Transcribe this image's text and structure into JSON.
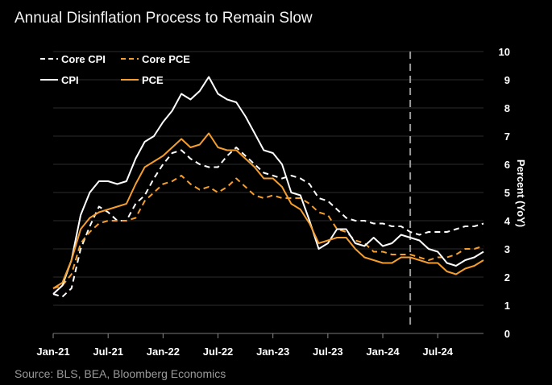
{
  "title": "Annual Disinflation Process to Remain Slow",
  "source": "Source: BLS, BEA, Bloomberg Economics",
  "chart_data": {
    "type": "line",
    "ylabel": "Percent (YoY)",
    "ylim": [
      0,
      10
    ],
    "yticks": [
      0,
      1,
      2,
      3,
      4,
      5,
      6,
      7,
      8,
      9,
      10
    ],
    "y_axis_side": "right",
    "grid": "horizontal",
    "legend_position": "top-left",
    "x_start": "2021-01",
    "x_end": "2024-12",
    "x_tick_labels": [
      "Jan-21",
      "Jul-21",
      "Jan-22",
      "Jul-22",
      "Jan-23",
      "Jul-23",
      "Jan-24",
      "Jul-24"
    ],
    "forecast_divider": "2024-04",
    "series": [
      {
        "name": "Core CPI",
        "color": "#ffffff",
        "dash": true,
        "x": [
          "2021-01",
          "2021-02",
          "2021-03",
          "2021-04",
          "2021-05",
          "2021-06",
          "2021-07",
          "2021-08",
          "2021-09",
          "2021-10",
          "2021-11",
          "2021-12",
          "2022-01",
          "2022-02",
          "2022-03",
          "2022-04",
          "2022-05",
          "2022-06",
          "2022-07",
          "2022-08",
          "2022-09",
          "2022-10",
          "2022-11",
          "2022-12",
          "2023-01",
          "2023-02",
          "2023-03",
          "2023-04",
          "2023-05",
          "2023-06",
          "2023-07",
          "2023-08",
          "2023-09",
          "2023-10",
          "2023-11",
          "2023-12",
          "2024-01",
          "2024-02",
          "2024-03",
          "2024-04",
          "2024-05",
          "2024-06",
          "2024-07",
          "2024-08",
          "2024-09",
          "2024-10",
          "2024-11",
          "2024-12"
        ],
        "values": [
          1.4,
          1.3,
          1.6,
          3.0,
          3.8,
          4.5,
          4.3,
          4.0,
          4.0,
          4.6,
          4.9,
          5.5,
          6.0,
          6.4,
          6.5,
          6.2,
          6.0,
          5.9,
          5.9,
          6.3,
          6.6,
          6.3,
          6.0,
          5.7,
          5.6,
          5.5,
          5.6,
          5.5,
          5.3,
          4.8,
          4.7,
          4.4,
          4.1,
          4.0,
          4.0,
          3.9,
          3.9,
          3.8,
          3.8,
          3.6,
          3.5,
          3.6,
          3.6,
          3.6,
          3.7,
          3.8,
          3.8,
          3.9
        ]
      },
      {
        "name": "Core PCE",
        "color": "#f59e2e",
        "dash": true,
        "x": [
          "2021-01",
          "2021-02",
          "2021-03",
          "2021-04",
          "2021-05",
          "2021-06",
          "2021-07",
          "2021-08",
          "2021-09",
          "2021-10",
          "2021-11",
          "2021-12",
          "2022-01",
          "2022-02",
          "2022-03",
          "2022-04",
          "2022-05",
          "2022-06",
          "2022-07",
          "2022-08",
          "2022-09",
          "2022-10",
          "2022-11",
          "2022-12",
          "2023-01",
          "2023-02",
          "2023-03",
          "2023-04",
          "2023-05",
          "2023-06",
          "2023-07",
          "2023-08",
          "2023-09",
          "2023-10",
          "2023-11",
          "2023-12",
          "2024-01",
          "2024-02",
          "2024-03",
          "2024-04",
          "2024-05",
          "2024-06",
          "2024-07",
          "2024-08",
          "2024-09",
          "2024-10",
          "2024-11",
          "2024-12"
        ],
        "values": [
          1.6,
          1.7,
          2.1,
          3.2,
          3.6,
          3.9,
          4.0,
          4.0,
          4.0,
          4.1,
          4.7,
          5.0,
          5.3,
          5.4,
          5.6,
          5.3,
          5.1,
          5.2,
          5.0,
          5.2,
          5.5,
          5.2,
          4.9,
          4.8,
          4.9,
          4.8,
          4.8,
          4.8,
          4.6,
          4.3,
          4.2,
          3.7,
          3.6,
          3.3,
          3.2,
          2.9,
          2.9,
          2.8,
          2.8,
          2.8,
          2.7,
          2.6,
          2.7,
          2.7,
          2.8,
          3.0,
          3.0,
          3.1
        ]
      },
      {
        "name": "CPI",
        "color": "#ffffff",
        "dash": false,
        "x": [
          "2021-01",
          "2021-02",
          "2021-03",
          "2021-04",
          "2021-05",
          "2021-06",
          "2021-07",
          "2021-08",
          "2021-09",
          "2021-10",
          "2021-11",
          "2021-12",
          "2022-01",
          "2022-02",
          "2022-03",
          "2022-04",
          "2022-05",
          "2022-06",
          "2022-07",
          "2022-08",
          "2022-09",
          "2022-10",
          "2022-11",
          "2022-12",
          "2023-01",
          "2023-02",
          "2023-03",
          "2023-04",
          "2023-05",
          "2023-06",
          "2023-07",
          "2023-08",
          "2023-09",
          "2023-10",
          "2023-11",
          "2023-12",
          "2024-01",
          "2024-02",
          "2024-03",
          "2024-04",
          "2024-05",
          "2024-06",
          "2024-07",
          "2024-08",
          "2024-09",
          "2024-10",
          "2024-11",
          "2024-12"
        ],
        "values": [
          1.4,
          1.7,
          2.6,
          4.2,
          5.0,
          5.4,
          5.4,
          5.3,
          5.4,
          6.2,
          6.8,
          7.0,
          7.5,
          7.9,
          8.5,
          8.3,
          8.6,
          9.1,
          8.5,
          8.3,
          8.2,
          7.7,
          7.1,
          6.5,
          6.4,
          6.0,
          5.0,
          4.9,
          4.0,
          3.0,
          3.2,
          3.7,
          3.7,
          3.2,
          3.1,
          3.4,
          3.1,
          3.2,
          3.5,
          3.4,
          3.3,
          3.0,
          2.9,
          2.5,
          2.4,
          2.6,
          2.7,
          2.9
        ]
      },
      {
        "name": "PCE",
        "color": "#f59e2e",
        "dash": false,
        "x": [
          "2021-01",
          "2021-02",
          "2021-03",
          "2021-04",
          "2021-05",
          "2021-06",
          "2021-07",
          "2021-08",
          "2021-09",
          "2021-10",
          "2021-11",
          "2021-12",
          "2022-01",
          "2022-02",
          "2022-03",
          "2022-04",
          "2022-05",
          "2022-06",
          "2022-07",
          "2022-08",
          "2022-09",
          "2022-10",
          "2022-11",
          "2022-12",
          "2023-01",
          "2023-02",
          "2023-03",
          "2023-04",
          "2023-05",
          "2023-06",
          "2023-07",
          "2023-08",
          "2023-09",
          "2023-10",
          "2023-11",
          "2023-12",
          "2024-01",
          "2024-02",
          "2024-03",
          "2024-04",
          "2024-05",
          "2024-06",
          "2024-07",
          "2024-08",
          "2024-09",
          "2024-10",
          "2024-11",
          "2024-12"
        ],
        "values": [
          1.6,
          1.8,
          2.6,
          3.7,
          4.1,
          4.3,
          4.4,
          4.5,
          4.6,
          5.3,
          5.9,
          6.1,
          6.3,
          6.6,
          6.9,
          6.6,
          6.7,
          7.1,
          6.6,
          6.5,
          6.5,
          6.2,
          5.9,
          5.5,
          5.5,
          5.2,
          4.6,
          4.4,
          3.9,
          3.2,
          3.3,
          3.4,
          3.4,
          3.0,
          2.7,
          2.6,
          2.5,
          2.5,
          2.7,
          2.7,
          2.6,
          2.5,
          2.5,
          2.2,
          2.1,
          2.3,
          2.4,
          2.6
        ]
      }
    ]
  }
}
